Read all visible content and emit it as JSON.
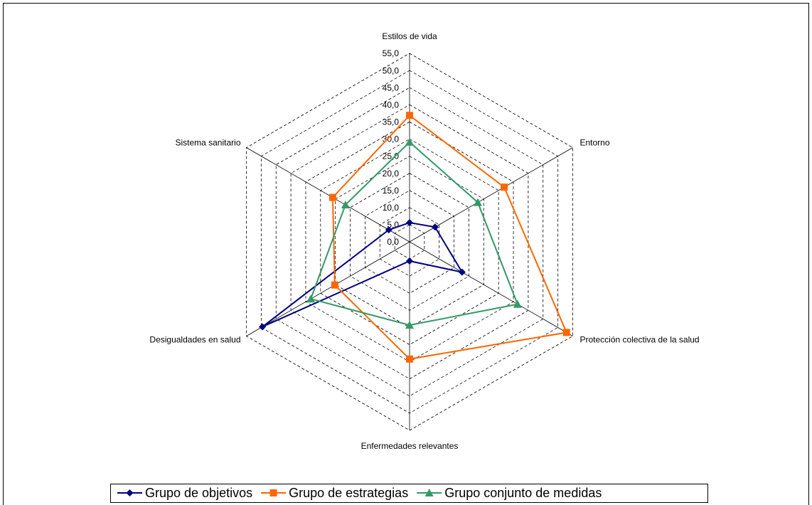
{
  "chart_data": {
    "type": "radar",
    "categories": [
      "Estilos de vida",
      "Entorno",
      "Protección colectiva de la salud",
      "Enfermedades relevantes",
      "Desigualdades en salud",
      "Sistema sanitario"
    ],
    "series": [
      {
        "name": "Grupo de objetivos",
        "color": "#000080",
        "marker": "diamond",
        "values": [
          5.6,
          8.6,
          17.7,
          5.6,
          49.6,
          7.0
        ]
      },
      {
        "name": "Grupo de estrategias",
        "color": "#ff6600",
        "marker": "square",
        "values": [
          36.9,
          31.9,
          52.9,
          34.2,
          25.2,
          25.9
        ]
      },
      {
        "name": "Grupo conjunto de medidas",
        "color": "#339966",
        "marker": "triangle",
        "values": [
          29.1,
          23.0,
          36.4,
          24.3,
          33.3,
          21.6
        ]
      }
    ],
    "rlim": [
      0,
      55
    ],
    "rticks": [
      {
        "value": 0,
        "label": "0,0"
      },
      {
        "value": 5,
        "label": "5,0"
      },
      {
        "value": 10,
        "label": "10,0"
      },
      {
        "value": 15,
        "label": "15,0"
      },
      {
        "value": 20,
        "label": "20,0"
      },
      {
        "value": 25,
        "label": "25,0"
      },
      {
        "value": 30,
        "label": "30,0"
      },
      {
        "value": 35,
        "label": "35,0"
      },
      {
        "value": 40,
        "label": "40,0"
      },
      {
        "value": 45,
        "label": "45,0"
      },
      {
        "value": 50,
        "label": "50,0"
      },
      {
        "value": 55,
        "label": "55,0"
      }
    ],
    "grid": true,
    "legend": "bottom"
  }
}
